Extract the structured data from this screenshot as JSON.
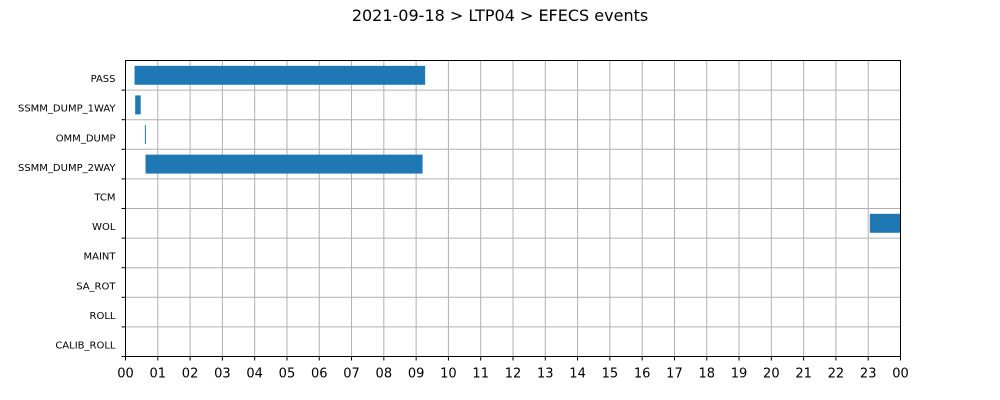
{
  "chart_data": {
    "type": "bar",
    "orientation": "horizontal",
    "title": "2021-09-18 > LTP04 > EFECS events",
    "xlabel": "",
    "ylabel": "",
    "x_range_hours": [
      0,
      24
    ],
    "x_tick_labels": [
      "00",
      "01",
      "02",
      "03",
      "04",
      "05",
      "06",
      "07",
      "08",
      "09",
      "10",
      "11",
      "12",
      "13",
      "14",
      "15",
      "16",
      "17",
      "18",
      "19",
      "20",
      "21",
      "22",
      "23",
      "00"
    ],
    "grid": true,
    "bar_color": "#1f77b4",
    "categories": [
      "PASS",
      "SSMM_DUMP_1WAY",
      "OMM_DUMP",
      "SSMM_DUMP_2WAY",
      "TCM",
      "WOL",
      "MAINT",
      "SA_ROT",
      "ROLL",
      "CALIB_ROLL"
    ],
    "events": [
      {
        "category": "PASS",
        "start_hour": 0.28,
        "end_hour": 9.28
      },
      {
        "category": "SSMM_DUMP_1WAY",
        "start_hour": 0.3,
        "end_hour": 0.47
      },
      {
        "category": "OMM_DUMP",
        "start_hour": 0.6,
        "end_hour": 0.63
      },
      {
        "category": "SSMM_DUMP_2WAY",
        "start_hour": 0.62,
        "end_hour": 9.2
      },
      {
        "category": "WOL",
        "start_hour": 23.05,
        "end_hour": 24.0
      }
    ]
  }
}
